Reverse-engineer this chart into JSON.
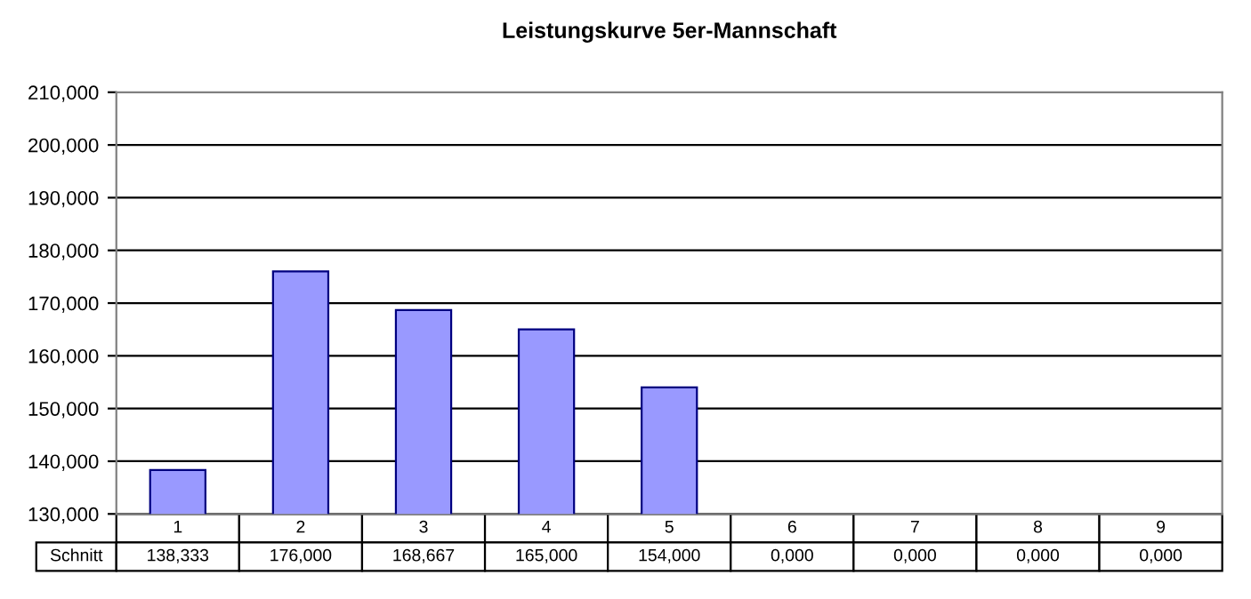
{
  "chart_data": {
    "type": "bar",
    "title": "Leistungskurve 5er-Mannschaft",
    "categories": [
      "1",
      "2",
      "3",
      "4",
      "5",
      "6",
      "7",
      "8",
      "9"
    ],
    "series": [
      {
        "name": "Schnitt",
        "color": "#9999ff",
        "values": [
          138.333,
          176.0,
          168.667,
          165.0,
          154.0,
          null,
          null,
          null,
          null
        ],
        "value_labels": [
          "138,333",
          "176,000",
          "168,667",
          "165,000",
          "154,000",
          "0,000",
          "0,000",
          "0,000",
          "0,000"
        ]
      }
    ],
    "ylim": [
      130,
      210
    ],
    "yticks": [
      {
        "value": 130,
        "label": "130,000"
      },
      {
        "value": 140,
        "label": "140,000"
      },
      {
        "value": 150,
        "label": "150,000"
      },
      {
        "value": 160,
        "label": "160,000"
      },
      {
        "value": 170,
        "label": "170,000"
      },
      {
        "value": 180,
        "label": "180,000"
      },
      {
        "value": 190,
        "label": "190,000"
      },
      {
        "value": 200,
        "label": "200,000"
      },
      {
        "value": 210,
        "label": "210,000"
      }
    ],
    "grid": "y",
    "legend": false
  }
}
